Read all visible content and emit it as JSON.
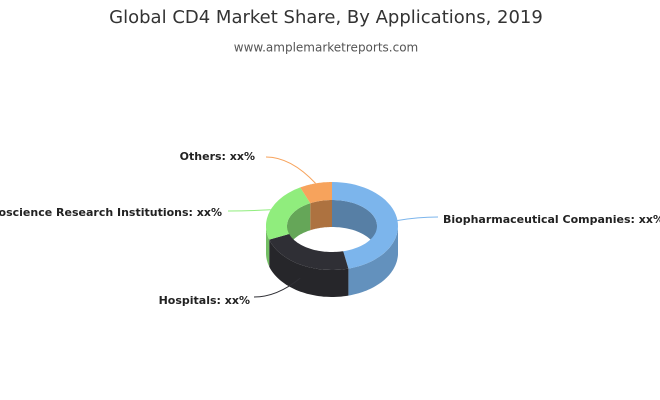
{
  "chart_data": {
    "type": "donut3d",
    "title": "Global CD4 Market Share, By Applications, 2019",
    "subtitle": "www.amplemarketreports.com",
    "categories": [
      "Biopharmaceutical Companies: xx%",
      "Hospitals: xx%",
      "Bioscience Research Institutions: xx%",
      "Others: xx%"
    ],
    "values": [
      46,
      24,
      22,
      8
    ],
    "colors": [
      "#7cb5ec",
      "#2f2f35",
      "#90ed7d",
      "#f7a35c"
    ]
  }
}
